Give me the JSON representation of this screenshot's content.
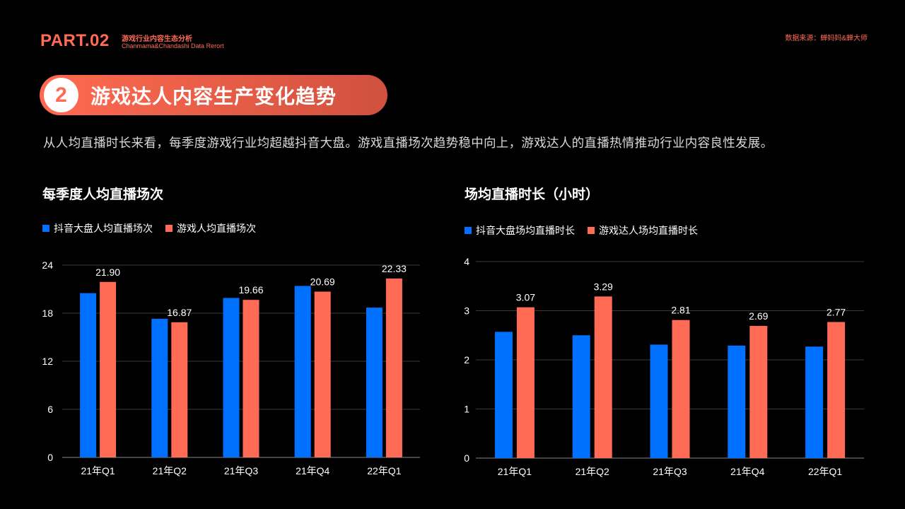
{
  "header": {
    "part": "PART.02",
    "subtitle_cn": "游戏行业内容生态分析",
    "subtitle_en": "Chanmama&Chandashi Data Rerort",
    "source": "数据来源：蝉妈妈&蝉大师"
  },
  "section": {
    "number": "2",
    "title": "游戏达人内容生产变化趋势"
  },
  "description": "从人均直播时长来看，每季度游戏行业均超越抖音大盘。游戏直播场次趋势稳中向上，游戏达人的直播热情推动行业内容良性发展。",
  "colors": {
    "blue": "#0070ff",
    "orange": "#ff6b55",
    "accent": "#ff6b55"
  },
  "chart_data": [
    {
      "type": "bar",
      "title": "每季度人均直播场次",
      "categories": [
        "21年Q1",
        "21年Q2",
        "21年Q3",
        "21年Q4",
        "22年Q1"
      ],
      "series": [
        {
          "name": "抖音大盘人均直播场次",
          "color": "#0070ff",
          "values": [
            20.5,
            17.3,
            19.9,
            21.4,
            18.7
          ],
          "labeled": false
        },
        {
          "name": "游戏人均直播场次",
          "color": "#ff6b55",
          "values": [
            21.9,
            16.87,
            19.66,
            20.69,
            22.33
          ],
          "labeled": true,
          "labels": [
            "21.90",
            "16.87",
            "19.66",
            "20.69",
            "22.33"
          ]
        }
      ],
      "ylim": [
        0,
        24
      ],
      "yticks": [
        "0",
        "6",
        "12",
        "18",
        "24"
      ],
      "ytick_values": [
        0,
        6,
        12,
        18,
        24
      ],
      "grid": true,
      "legend": "top-left"
    },
    {
      "type": "bar",
      "title": "场均直播时长（小时）",
      "categories": [
        "21年Q1",
        "21年Q2",
        "21年Q3",
        "21年Q4",
        "22年Q1"
      ],
      "series": [
        {
          "name": "抖音大盘场均直播时长",
          "color": "#0070ff",
          "values": [
            2.57,
            2.5,
            2.31,
            2.29,
            2.27
          ],
          "labeled": false
        },
        {
          "name": "游戏达人场均直播时长",
          "color": "#ff6b55",
          "values": [
            3.07,
            3.29,
            2.81,
            2.69,
            2.77
          ],
          "labeled": true,
          "labels": [
            "3.07",
            "3.29",
            "2.81",
            "2.69",
            "2.77"
          ]
        }
      ],
      "ylim": [
        0,
        4
      ],
      "yticks": [
        "0",
        "1",
        "2",
        "3",
        "4"
      ],
      "ytick_values": [
        0,
        1,
        2,
        3,
        4
      ],
      "grid": true,
      "legend": "top-left"
    }
  ]
}
